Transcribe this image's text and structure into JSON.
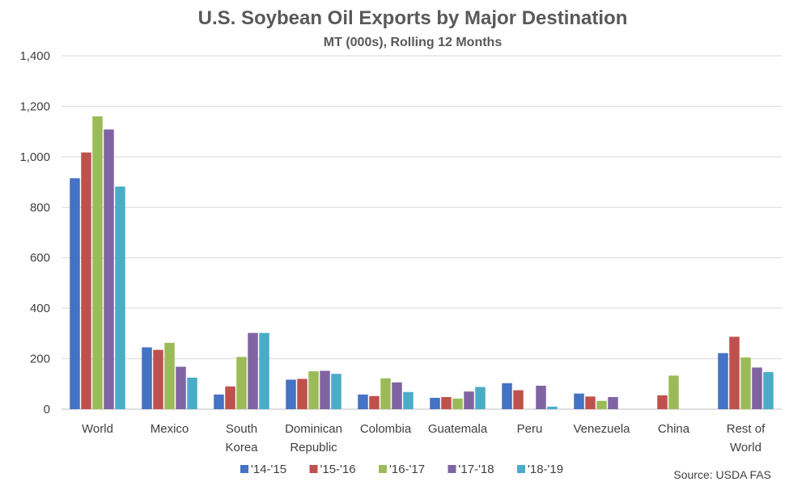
{
  "colors": {
    "series": [
      "#4472C4",
      "#C0504D",
      "#9BBB59",
      "#8064A2",
      "#4BACC6"
    ],
    "grid": "#d9d9d9",
    "axis": "#bfbfbf"
  },
  "source": "Source: USDA FAS",
  "chart_data": {
    "type": "bar",
    "title": "U.S. Soybean Oil Exports by Major Destination",
    "subtitle": "MT (000s), Rolling 12 Months",
    "xlabel": "",
    "ylabel": "",
    "ylim": [
      0,
      1400
    ],
    "yticks": [
      "0",
      "200",
      "400",
      "600",
      "800",
      "1,000",
      "1,200",
      "1,400"
    ],
    "ytick_values": [
      0,
      200,
      400,
      600,
      800,
      1000,
      1200,
      1400
    ],
    "grid": true,
    "legend_position": "bottom",
    "categories": [
      [
        "World"
      ],
      [
        "Mexico"
      ],
      [
        "South",
        "Korea"
      ],
      [
        "Dominican",
        "Republic"
      ],
      [
        "Colombia"
      ],
      [
        "Guatemala"
      ],
      [
        "Peru"
      ],
      [
        "Venezuela"
      ],
      [
        "China"
      ],
      [
        "Rest of",
        "World"
      ]
    ],
    "series": [
      {
        "name": "'14-'15",
        "values": [
          915,
          245,
          58,
          117,
          58,
          45,
          103,
          62,
          0,
          222
        ]
      },
      {
        "name": "'15-'16",
        "values": [
          1017,
          235,
          90,
          120,
          52,
          48,
          75,
          50,
          55,
          287
        ]
      },
      {
        "name": "'16-'17",
        "values": [
          1160,
          263,
          207,
          150,
          122,
          42,
          0,
          33,
          133,
          205
        ]
      },
      {
        "name": "'17-'18",
        "values": [
          1108,
          168,
          302,
          152,
          106,
          70,
          93,
          48,
          0,
          165
        ]
      },
      {
        "name": "'18-'19",
        "values": [
          882,
          125,
          302,
          140,
          68,
          88,
          10,
          0,
          0,
          147
        ]
      }
    ]
  }
}
